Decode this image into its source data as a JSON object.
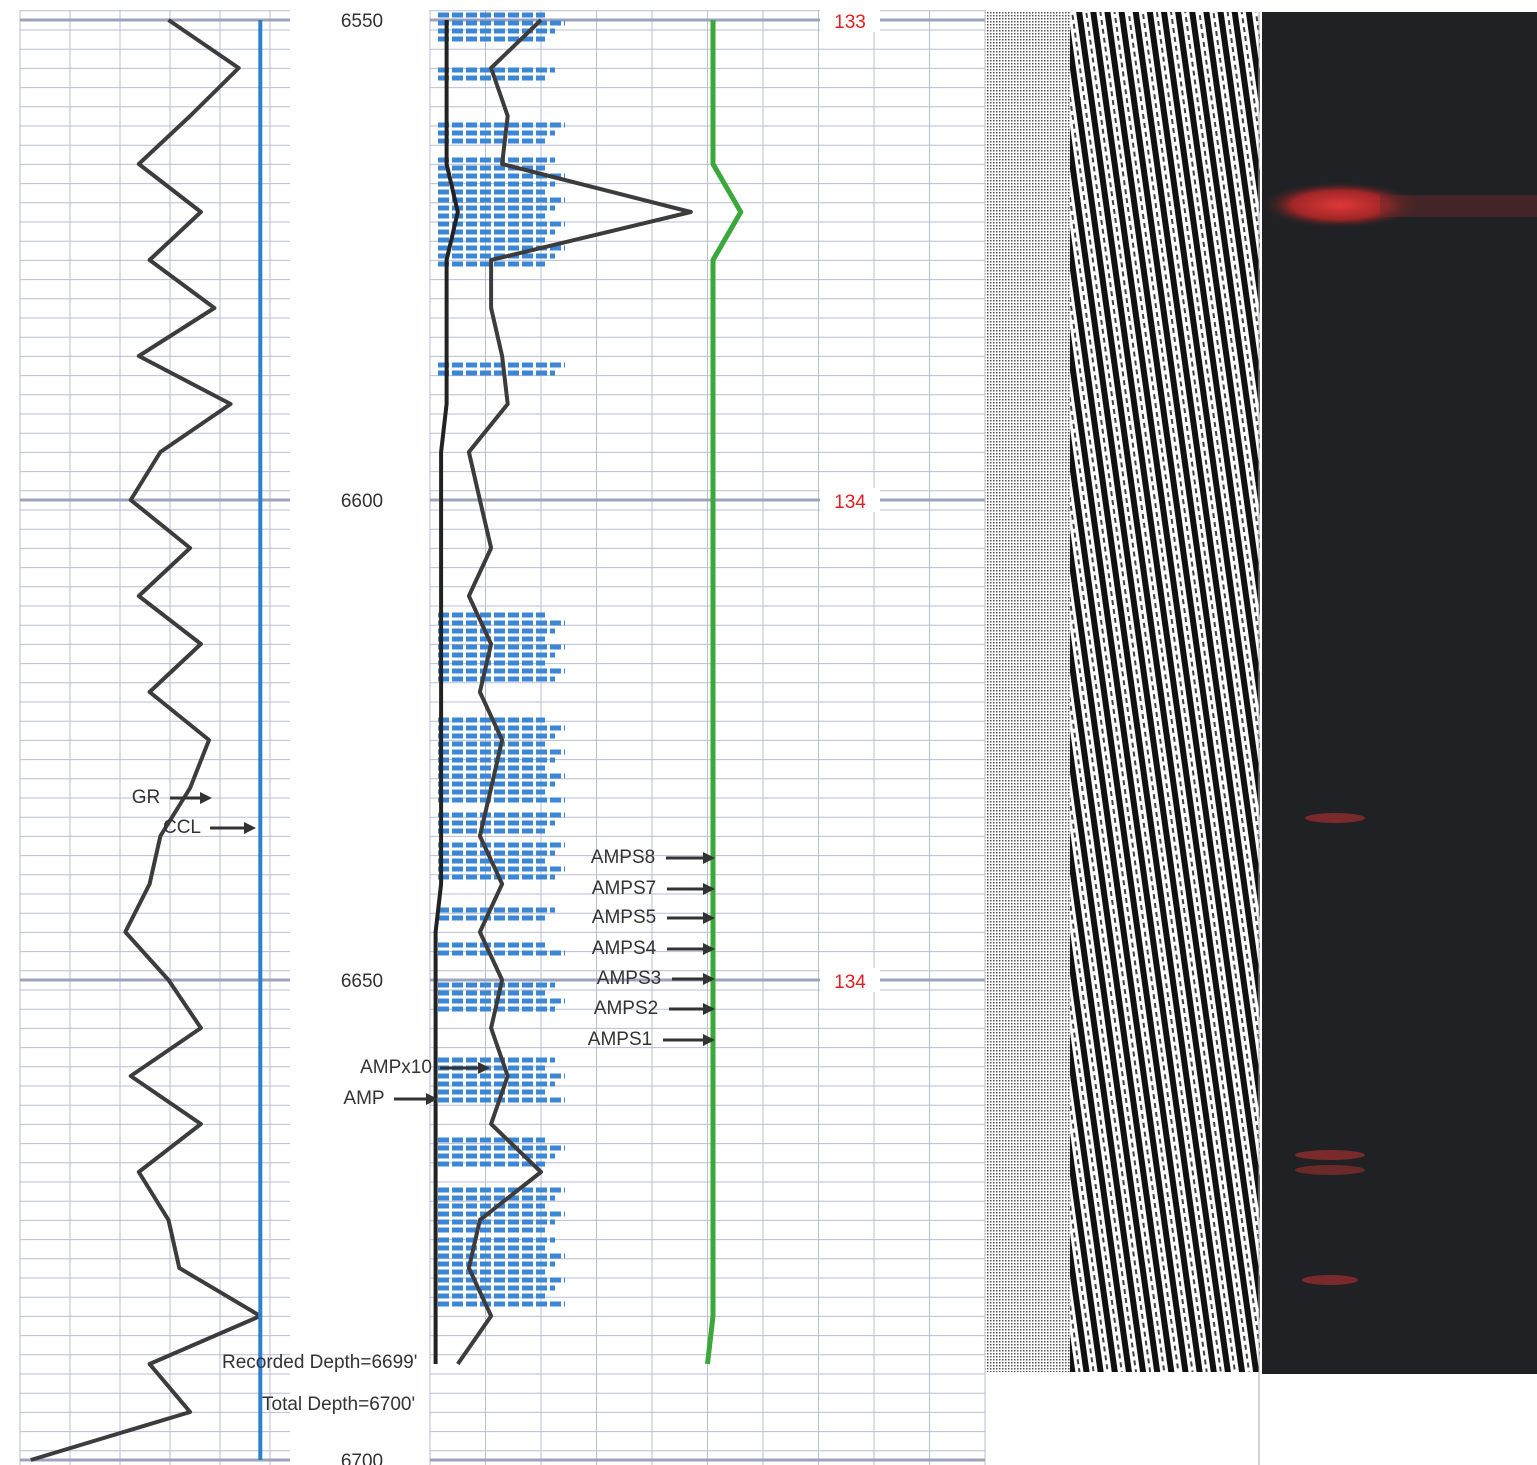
{
  "chart_data": {
    "type": "well-log",
    "ylim": [
      6550,
      6700
    ],
    "yticks": [
      6550,
      6600,
      6650,
      6700
    ],
    "depth": [
      6550,
      6555,
      6560,
      6565,
      6570,
      6575,
      6580,
      6585,
      6590,
      6595,
      6600,
      6605,
      6610,
      6615,
      6620,
      6625,
      6630,
      6635,
      6640,
      6645,
      6650,
      6655,
      6660,
      6665,
      6670,
      6675,
      6680,
      6685,
      6690,
      6695,
      6700
    ],
    "tracks": [
      {
        "xlim": [
          0,
          100
        ],
        "series": [
          {
            "name": "GR",
            "color": "#3c3c3c",
            "values": [
              55,
              81,
              63,
              44,
              67,
              48,
              72,
              44,
              78,
              52,
              41,
              63,
              44,
              67,
              48,
              70,
              63,
              52,
              48,
              39,
              55,
              67,
              41,
              67,
              44,
              55,
              59,
              89,
              48,
              63,
              4
            ]
          },
          {
            "name": "CCL",
            "color": "#2f7fd0",
            "values": [
              89,
              89,
              89,
              89,
              89,
              89,
              89,
              89,
              89,
              89,
              89,
              89,
              89,
              89,
              89,
              89,
              89,
              89,
              89,
              89,
              89,
              89,
              89,
              89,
              89,
              89,
              89,
              89,
              89,
              89,
              89
            ]
          }
        ]
      },
      {
        "xlim": [
          0,
          100
        ],
        "series": [
          {
            "name": "AMP",
            "color": "#222222",
            "values": [
              3,
              3,
              3,
              3,
              5,
              3,
              3,
              3,
              3,
              2,
              2,
              2,
              2,
              2,
              2,
              2,
              2,
              2,
              2,
              1,
              1,
              1,
              1,
              1,
              1,
              1,
              1,
              1,
              1,
              null,
              null
            ]
          },
          {
            "name": "AMPx10",
            "color": "#3c3c3c",
            "values": [
              20,
              11,
              14,
              13,
              47,
              11,
              11,
              13,
              14,
              7,
              9,
              11,
              7,
              11,
              9,
              13,
              11,
              9,
              13,
              9,
              13,
              11,
              14,
              11,
              20,
              9,
              7,
              11,
              5,
              null,
              null
            ]
          },
          {
            "color": "#3aa83a",
            "values": [
              51,
              51,
              51,
              51,
              56,
              51,
              51,
              51,
              51,
              51,
              51,
              51,
              51,
              51,
              51,
              51,
              51,
              51,
              51,
              51,
              51,
              51,
              51,
              51,
              51,
              51,
              51,
              51,
              50,
              null,
              null
            ]
          }
        ]
      }
    ],
    "temperature": {
      "color": "#e02020",
      "values": [
        133,
        134,
        134
      ]
    },
    "annotations": [
      "AMPS8",
      "AMPS7",
      "AMPS5",
      "AMPS4",
      "AMPS3",
      "AMPS2",
      "AMPS1",
      "Recorded Depth=6699'",
      "Total Depth=6700'"
    ]
  }
}
